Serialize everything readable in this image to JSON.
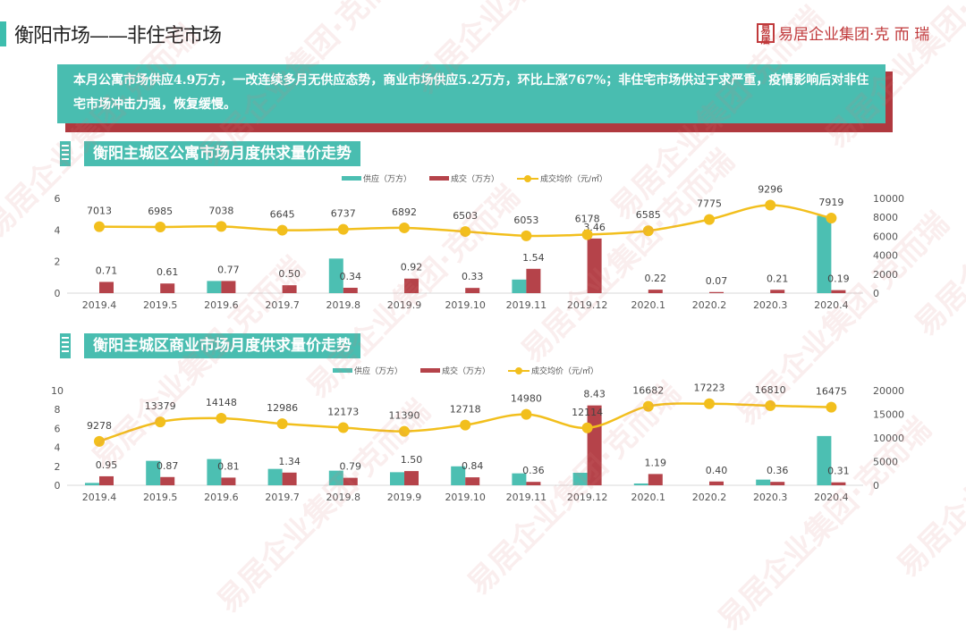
{
  "header": {
    "title": "衡阳市场——非住宅市场",
    "logo_text": "易居企业集团·克 而 瑞",
    "logo_seal": "易居"
  },
  "summary": "本月公寓市场供应4.9万方，一改连续多月无供应态势，商业市场供应5.2万方，环比上涨767%；非住宅市场供过于求严重，疫情影响后对非住宅市场冲击力强，恢复缓慢。",
  "watermark": "易居企业集团·克而瑞",
  "colors": {
    "supply": "#4cbfb2",
    "sales": "#b5434a",
    "price": "#f2bf1d",
    "accent": "#49bdb0"
  },
  "chart_data": [
    {
      "type": "bar",
      "title": "衡阳主城区公寓市场月度供求量价走势",
      "categories": [
        "2019.4",
        "2019.5",
        "2019.6",
        "2019.7",
        "2019.8",
        "2019.9",
        "2019.10",
        "2019.11",
        "2019.12",
        "2020.1",
        "2020.2",
        "2020.3",
        "2020.4"
      ],
      "series": [
        {
          "name": "供应（万方）",
          "type": "bar",
          "axis": "left",
          "values": [
            0,
            0,
            0.77,
            0,
            2.19,
            0,
            0,
            0.86,
            0,
            0,
            0,
            0,
            4.9
          ]
        },
        {
          "name": "成交（万方）",
          "type": "bar",
          "axis": "left",
          "values": [
            0.71,
            0.61,
            0.77,
            0.5,
            0.34,
            0.92,
            0.33,
            1.54,
            3.46,
            0.22,
            0.07,
            0.21,
            0.19
          ],
          "labels": [
            "0.71",
            "0.61",
            "0.77",
            "0.50",
            "0.34",
            "0.92",
            "0.33",
            "1.54",
            "3.46",
            "0.22",
            "0.07",
            "0.21",
            "0.19"
          ]
        },
        {
          "name": "成交均价（元/㎡）",
          "type": "line",
          "axis": "right",
          "values": [
            7013,
            6985,
            7038,
            6645,
            6737,
            6892,
            6503,
            6053,
            6178,
            6585,
            7775,
            9296,
            7919
          ]
        }
      ],
      "ylim_left": [
        0,
        6
      ],
      "yticks_left": [
        "0",
        "2",
        "4",
        "6"
      ],
      "ylim_right": [
        0,
        10000
      ],
      "yticks_right": [
        "0",
        "2000",
        "4000",
        "6000",
        "8000",
        "10000"
      ],
      "legend": "top-center",
      "grid": false
    },
    {
      "type": "bar",
      "title": "衡阳主城区商业市场月度供求量价走势",
      "categories": [
        "2019.4",
        "2019.5",
        "2019.6",
        "2019.7",
        "2019.8",
        "2019.9",
        "2019.10",
        "2019.11",
        "2019.12",
        "2020.1",
        "2020.2",
        "2020.3",
        "2020.4"
      ],
      "series": [
        {
          "name": "供应（万方）",
          "type": "bar",
          "axis": "left",
          "values": [
            0.25,
            2.58,
            2.77,
            1.73,
            1.54,
            1.38,
            2.0,
            1.26,
            1.32,
            0.19,
            0,
            0.6,
            5.2
          ]
        },
        {
          "name": "成交（万方）",
          "type": "bar",
          "axis": "left",
          "values": [
            0.95,
            0.87,
            0.81,
            1.34,
            0.79,
            1.5,
            0.84,
            0.36,
            8.43,
            1.19,
            0.4,
            0.36,
            0.31
          ],
          "labels": [
            "0.95",
            "0.87",
            "0.81",
            "1.34",
            "0.79",
            "1.50",
            "0.84",
            "0.36",
            "8.43",
            "1.19",
            "0.40",
            "0.36",
            "0.31"
          ]
        },
        {
          "name": "成交均价（元/㎡）",
          "type": "line",
          "axis": "right",
          "values": [
            9278,
            13379,
            14148,
            12986,
            12173,
            11390,
            12718,
            14980,
            12114,
            16682,
            17223,
            16810,
            16475
          ]
        }
      ],
      "ylim_left": [
        0,
        10
      ],
      "yticks_left": [
        "0",
        "2",
        "4",
        "6",
        "8",
        "10"
      ],
      "ylim_right": [
        0,
        20000
      ],
      "yticks_right": [
        "0",
        "5000",
        "10000",
        "15000",
        "20000"
      ],
      "legend": "top-center",
      "grid": false
    }
  ]
}
